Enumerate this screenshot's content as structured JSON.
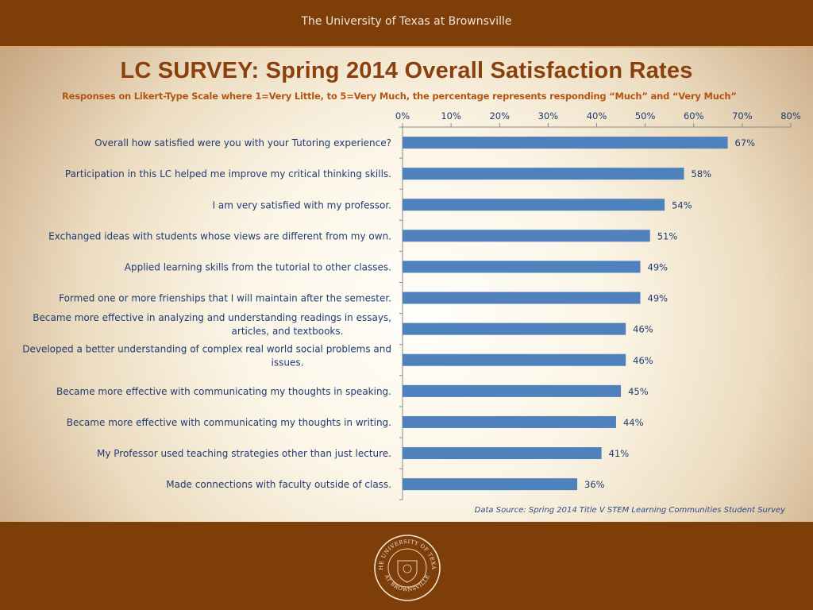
{
  "header": {
    "institution": "The University of Texas at Brownsville"
  },
  "title": "LC SURVEY: Spring 2014 Overall Satisfaction Rates",
  "subtitle": "Responses on Likert-Type Scale where 1=Very Little, to 5=Very Much, the percentage represents responding  “Much” and “Very Much”",
  "source": "Data Source: Spring  2014 Title V STEM Learning Communities Student Survey",
  "footer": {
    "seal": {
      "icon": "university-seal-icon",
      "text_top": "THE UNIVERSITY OF TEXAS",
      "text_bottom": "AT BROWNSVILLE"
    }
  },
  "colors": {
    "bar": "#4f81bd",
    "label": "#1f3b73",
    "banner": "#7d3e0a",
    "title": "#8b3f0d",
    "subtitle": "#b35614"
  },
  "chart_data": {
    "type": "bar",
    "orientation": "horizontal",
    "xaxis_position": "top",
    "xlim": [
      0,
      80
    ],
    "xticks": [
      "0%",
      "10%",
      "20%",
      "30%",
      "40%",
      "50%",
      "60%",
      "70%",
      "80%"
    ],
    "categories": [
      "Overall how satisfied were you with your Tutoring experience?",
      "Participation in this LC helped me improve my critical thinking skills.",
      "I am very satisfied with my professor.",
      "Exchanged ideas with students whose views are different from my own.",
      "Applied learning skills from the tutorial to other classes.",
      "Formed one or more frienships that I will maintain after the semester.",
      "Became more effective in analyzing and understanding readings in essays, articles, and textbooks.",
      "Developed a better understanding of complex real world social problems and issues.",
      "Became more effective with communicating my thoughts in speaking.",
      "Became more effective with communicating my thoughts in writing.",
      "My Professor used teaching strategies other than just lecture.",
      "Made connections with faculty outside of class."
    ],
    "values": [
      67,
      58,
      54,
      51,
      49,
      49,
      46,
      46,
      45,
      44,
      41,
      36
    ],
    "data_labels": [
      "67%",
      "58%",
      "54%",
      "51%",
      "49%",
      "49%",
      "46%",
      "46%",
      "45%",
      "44%",
      "41%",
      "36%"
    ],
    "grid": false,
    "legend": "none"
  }
}
